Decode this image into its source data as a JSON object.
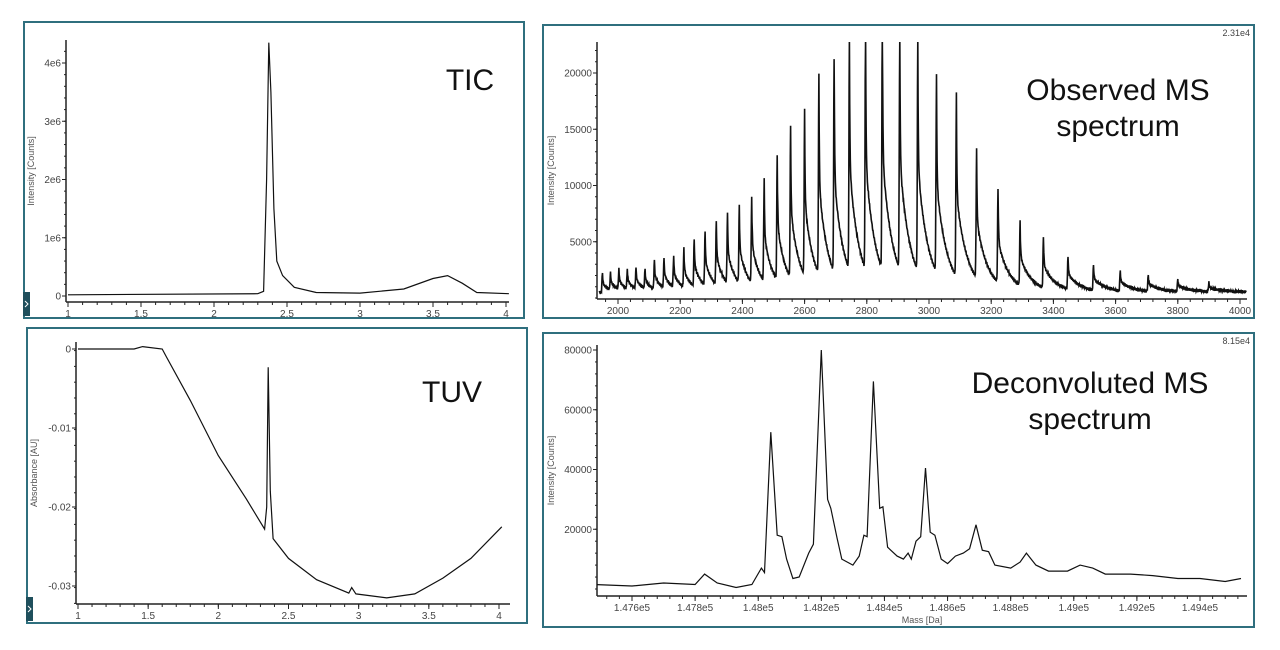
{
  "colors": {
    "frame": "#2f6f7e",
    "line": "#111111",
    "tab": "#1f4f5c"
  },
  "chart_data": [
    {
      "id": "tic",
      "type": "line",
      "title": "TIC",
      "xlabel": "",
      "ylabel": "Intensity [Counts]",
      "xlim": [
        1,
        4.02
      ],
      "ylim": [
        0,
        4400000.0
      ],
      "xticks": [
        1,
        1.5,
        2,
        2.5,
        3,
        3.5,
        4
      ],
      "xtick_labels": [
        "1",
        "1.5",
        "2",
        "2.5",
        "3",
        "3.5",
        "4"
      ],
      "yticks": [
        0,
        1000000.0,
        2000000.0,
        3000000.0,
        4000000.0
      ],
      "ytick_labels": [
        "0",
        "1e6",
        "2e6",
        "3e6",
        "4e6"
      ],
      "points": [
        [
          1,
          20000
        ],
        [
          2.3,
          40000
        ],
        [
          2.34,
          80000
        ],
        [
          2.36,
          2000000
        ],
        [
          2.375,
          4350000
        ],
        [
          2.39,
          3500000
        ],
        [
          2.41,
          1500000
        ],
        [
          2.43,
          600000
        ],
        [
          2.47,
          350000
        ],
        [
          2.55,
          150000
        ],
        [
          2.7,
          60000
        ],
        [
          3.0,
          50000
        ],
        [
          3.3,
          120000
        ],
        [
          3.5,
          300000
        ],
        [
          3.6,
          350000
        ],
        [
          3.7,
          220000
        ],
        [
          3.8,
          60000
        ],
        [
          4.02,
          40000
        ]
      ]
    },
    {
      "id": "tuv",
      "type": "line",
      "title": "TUV",
      "xlabel": "",
      "ylabel": "Absorbance [AU]",
      "xlim": [
        1,
        4.02
      ],
      "ylim": [
        -0.0322,
        0.0008
      ],
      "xticks": [
        1,
        1.5,
        2,
        2.5,
        3,
        3.5,
        4
      ],
      "xtick_labels": [
        "1",
        "1.5",
        "2",
        "2.5",
        "3",
        "3.5",
        "4"
      ],
      "yticks": [
        0,
        -0.01,
        -0.02,
        -0.03
      ],
      "ytick_labels": [
        "0",
        "-0.01",
        "-0.02",
        "-0.03"
      ],
      "points": [
        [
          1,
          0
        ],
        [
          1.4,
          0
        ],
        [
          1.46,
          0.0003
        ],
        [
          1.6,
          0
        ],
        [
          1.63,
          -0.001
        ],
        [
          1.8,
          -0.0065
        ],
        [
          2.0,
          -0.0135
        ],
        [
          2.2,
          -0.019
        ],
        [
          2.33,
          -0.0228
        ],
        [
          2.345,
          -0.02
        ],
        [
          2.355,
          -0.0023
        ],
        [
          2.37,
          -0.018
        ],
        [
          2.39,
          -0.024
        ],
        [
          2.5,
          -0.0265
        ],
        [
          2.7,
          -0.0292
        ],
        [
          2.93,
          -0.0309
        ],
        [
          2.95,
          -0.0302
        ],
        [
          2.98,
          -0.031
        ],
        [
          3.2,
          -0.0315
        ],
        [
          3.4,
          -0.031
        ],
        [
          3.6,
          -0.029
        ],
        [
          3.8,
          -0.0265
        ],
        [
          4.02,
          -0.0225
        ]
      ]
    },
    {
      "id": "observed-ms",
      "type": "line",
      "title": "Observed MS spectrum",
      "title_lines": [
        "Observed MS",
        "spectrum"
      ],
      "corner_label": "2.31e4",
      "xlabel": "",
      "ylabel": "Intensity [Counts]",
      "xlim": [
        1940,
        4020
      ],
      "ylim": [
        0,
        23100
      ],
      "xticks": [
        2000,
        2200,
        2400,
        2600,
        2800,
        3000,
        3200,
        3400,
        3600,
        3800,
        4000
      ],
      "xtick_labels": [
        "2000",
        "2200",
        "2400",
        "2600",
        "2800",
        "3000",
        "3200",
        "3400",
        "3600",
        "3800",
        "4000"
      ],
      "yticks": [
        5000,
        10000,
        15000,
        20000
      ],
      "ytick_labels": [
        "5000",
        "10000",
        "15000",
        "20000"
      ],
      "baseline": 700,
      "peaks": [
        [
          1950,
          1700
        ],
        [
          1976,
          1500
        ],
        [
          2003,
          1800
        ],
        [
          2030,
          1700
        ],
        [
          2058,
          1900
        ],
        [
          2087,
          1700
        ],
        [
          2117,
          2600
        ],
        [
          2148,
          2700
        ],
        [
          2179,
          2800
        ],
        [
          2212,
          3400
        ],
        [
          2245,
          4300
        ],
        [
          2280,
          4900
        ],
        [
          2316,
          5800
        ],
        [
          2352,
          6300
        ],
        [
          2390,
          6900
        ],
        [
          2430,
          7600
        ],
        [
          2470,
          9100
        ],
        [
          2512,
          11100
        ],
        [
          2555,
          13600
        ],
        [
          2600,
          14700
        ],
        [
          2646,
          17800
        ],
        [
          2695,
          18900
        ],
        [
          2744,
          20800
        ],
        [
          2796,
          21500
        ],
        [
          2850,
          22600
        ],
        [
          2906,
          21500
        ],
        [
          2964,
          20800
        ],
        [
          3024,
          17600
        ],
        [
          3088,
          16200
        ],
        [
          3153,
          11500
        ],
        [
          3222,
          8200
        ],
        [
          3293,
          5700
        ],
        [
          3368,
          4500
        ],
        [
          3447,
          3000
        ],
        [
          3529,
          2300
        ],
        [
          3615,
          1800
        ],
        [
          3705,
          1400
        ],
        [
          3800,
          1100
        ],
        [
          3900,
          800
        ]
      ]
    },
    {
      "id": "deconvoluted-ms",
      "type": "line",
      "title": "Deconvoluted MS spectrum",
      "title_lines": [
        "Deconvoluted MS",
        "spectrum"
      ],
      "corner_label": "8.15e4",
      "xlabel": "Mass [Da]",
      "ylabel": "Intensity [Counts]",
      "xlim": [
        147480,
        149540
      ],
      "ylim": [
        0,
        81500
      ],
      "xticks": [
        147600,
        147800,
        148000,
        148200,
        148400,
        148600,
        148800,
        149000,
        149200,
        149400
      ],
      "xtick_labels": [
        "1.476e5",
        "1.478e5",
        "1.48e5",
        "1.482e5",
        "1.484e5",
        "1.486e5",
        "1.488e5",
        "1.49e5",
        "1.492e5",
        "1.494e5"
      ],
      "yticks": [
        20000,
        40000,
        60000,
        80000
      ],
      "ytick_labels": [
        "20000",
        "40000",
        "60000",
        "80000"
      ],
      "points": [
        [
          147480,
          1500
        ],
        [
          147600,
          1000
        ],
        [
          147700,
          2000
        ],
        [
          147800,
          1500
        ],
        [
          147830,
          5000
        ],
        [
          147870,
          2000
        ],
        [
          147930,
          500
        ],
        [
          147980,
          1500
        ],
        [
          148010,
          7000
        ],
        [
          148020,
          5500
        ],
        [
          148040,
          52500
        ],
        [
          148060,
          18000
        ],
        [
          148075,
          17500
        ],
        [
          148090,
          10000
        ],
        [
          148110,
          3500
        ],
        [
          148130,
          4000
        ],
        [
          148160,
          12000
        ],
        [
          148175,
          15000
        ],
        [
          148200,
          80000
        ],
        [
          148220,
          30000
        ],
        [
          148230,
          27000
        ],
        [
          148250,
          17000
        ],
        [
          148265,
          10000
        ],
        [
          148300,
          8000
        ],
        [
          148320,
          11000
        ],
        [
          148335,
          18000
        ],
        [
          148345,
          17500
        ],
        [
          148365,
          69500
        ],
        [
          148385,
          27000
        ],
        [
          148395,
          27500
        ],
        [
          148410,
          14000
        ],
        [
          148440,
          11000
        ],
        [
          148460,
          10000
        ],
        [
          148475,
          12000
        ],
        [
          148485,
          10000
        ],
        [
          148500,
          16000
        ],
        [
          148515,
          17500
        ],
        [
          148530,
          40500
        ],
        [
          148545,
          19000
        ],
        [
          148560,
          18000
        ],
        [
          148580,
          10000
        ],
        [
          148600,
          8500
        ],
        [
          148625,
          11000
        ],
        [
          148650,
          12000
        ],
        [
          148670,
          13500
        ],
        [
          148690,
          21500
        ],
        [
          148710,
          13000
        ],
        [
          148730,
          12500
        ],
        [
          148750,
          8000
        ],
        [
          148800,
          7000
        ],
        [
          148830,
          9000
        ],
        [
          148850,
          12000
        ],
        [
          148880,
          8000
        ],
        [
          148920,
          6000
        ],
        [
          148980,
          6000
        ],
        [
          149020,
          8000
        ],
        [
          149060,
          7000
        ],
        [
          149100,
          5000
        ],
        [
          149180,
          5000
        ],
        [
          149250,
          4500
        ],
        [
          149330,
          3500
        ],
        [
          149400,
          3500
        ],
        [
          149480,
          2500
        ],
        [
          149530,
          3500
        ]
      ]
    }
  ]
}
